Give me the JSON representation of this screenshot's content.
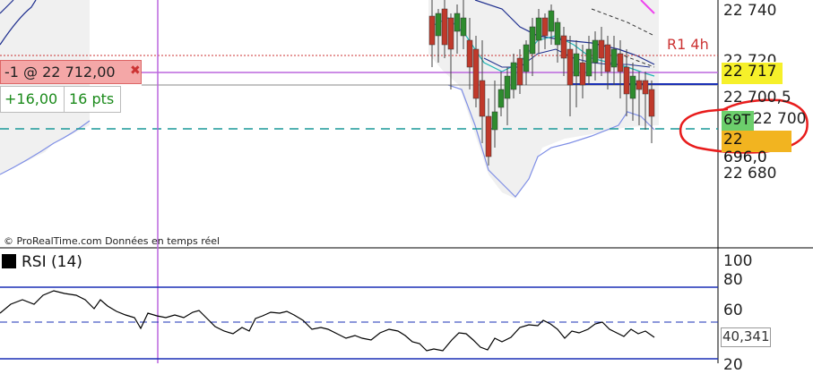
{
  "chart": {
    "price_ticks": [
      "22 740",
      "22 720",
      "22 700,5",
      "22 700",
      "22 680"
    ],
    "resistance_label": "R1 4h",
    "colors": {
      "candle_up": "#2e8b2e",
      "candle_down": "#c0392b",
      "bollinger": "#7f8fe6",
      "ma_fast": "#1fb5b5",
      "ma_slow": "#1f2f8f",
      "magenta": "#ee44ee",
      "resistance": "#cc3333",
      "purple_line": "#bb66dd",
      "blue_line": "#1a2fb5",
      "teal_dashed": "#1a9999",
      "annotation": "#e81c1c"
    }
  },
  "position": {
    "label": "-1 @ 22 712,00",
    "close_icon": "close-icon"
  },
  "pnl": {
    "amount": "+16,00",
    "points": "16 pts"
  },
  "price_tags": {
    "current": "22 717",
    "order": "69T",
    "order_price": "22 696,0"
  },
  "footer": {
    "credit": "© ProRealTime.com  Données en temps réel"
  },
  "rsi": {
    "label": "RSI (14)",
    "ticks": [
      "100",
      "80",
      "60",
      "20"
    ],
    "current_value": "40,341"
  }
}
